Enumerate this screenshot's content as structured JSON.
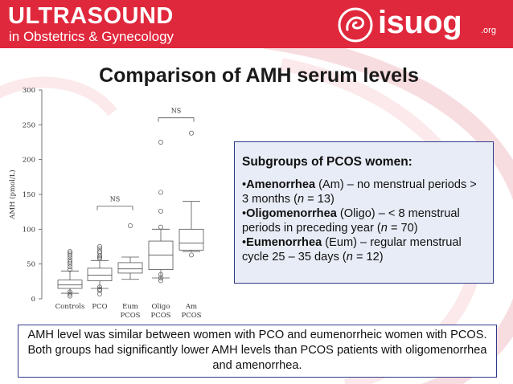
{
  "header": {
    "brand_line1": "ULTRASOUND",
    "brand_line2": "in Obstetrics & Gynecology",
    "logo_text": "isuog",
    "logo_tld": ".org",
    "bg_color": "#e0283c"
  },
  "title": "Comparison of AMH serum levels",
  "chart_data": {
    "type": "boxplot",
    "ylabel": "AMH (pmol/L)",
    "ylim": [
      0,
      300
    ],
    "yticks": [
      0,
      50,
      100,
      150,
      200,
      250,
      300
    ],
    "categories": [
      "Controls",
      "PCO",
      "Eum PCOS",
      "Oligo PCOS",
      "Am PCOS"
    ],
    "category_lines": [
      [
        "Controls"
      ],
      [
        "PCO"
      ],
      [
        "Eum",
        "PCOS"
      ],
      [
        "Oligo",
        "PCOS"
      ],
      [
        "Am",
        "PCOS"
      ]
    ],
    "boxes": [
      {
        "whisker_low": 8,
        "q1": 15,
        "median": 20,
        "q3": 27,
        "whisker_high": 40,
        "outliers": [
          42,
          46,
          50,
          53,
          56,
          60,
          63,
          66,
          68,
          10,
          7,
          4
        ]
      },
      {
        "whisker_low": 15,
        "q1": 26,
        "median": 34,
        "q3": 44,
        "whisker_high": 55,
        "outliers": [
          58,
          60,
          62,
          66,
          68,
          72,
          75,
          17,
          14,
          12,
          7
        ]
      },
      {
        "whisker_low": 28,
        "q1": 37,
        "median": 43,
        "q3": 52,
        "whisker_high": 60,
        "outliers": [
          105
        ]
      },
      {
        "whisker_low": 30,
        "q1": 42,
        "median": 63,
        "q3": 83,
        "whisker_high": 100,
        "outliers": [
          153,
          126,
          225,
          103,
          35,
          30,
          26
        ]
      },
      {
        "whisker_low": 68,
        "q1": 70,
        "median": 80,
        "q3": 100,
        "whisker_high": 140,
        "outliers": [
          63,
          238
        ]
      }
    ],
    "annotations": [
      {
        "text": "NS",
        "from": "PCO",
        "to": "Eum PCOS"
      },
      {
        "text": "NS",
        "from": "Oligo PCOS",
        "to": "Am PCOS"
      }
    ]
  },
  "subgroups": {
    "title": "Subgroups of PCOS women:",
    "items": [
      {
        "bullet": "•",
        "term": "Amenorrhea",
        "desc_a": " (Am) – no menstrual periods > 3 months (",
        "n": "n",
        "desc_b": " = 13)"
      },
      {
        "bullet": "•",
        "term": "Oligomenorrhea",
        "desc_a": " (Oligo) – < 8 menstrual periods in preceding year (",
        "n": "n",
        "desc_b": " = 70)"
      },
      {
        "bullet": "•",
        "term": "Eumenorrhea",
        "desc_a": " (Eum) – regular menstrual cycle 25 – 35 days (",
        "n": "n",
        "desc_b": " = 12)"
      }
    ]
  },
  "caption": "AMH level was similar between women with PCO and eumenorrheic women with PCOS. Both groups had significantly lower AMH levels than PCOS patients with oligomenorrhea and amenorrhea."
}
